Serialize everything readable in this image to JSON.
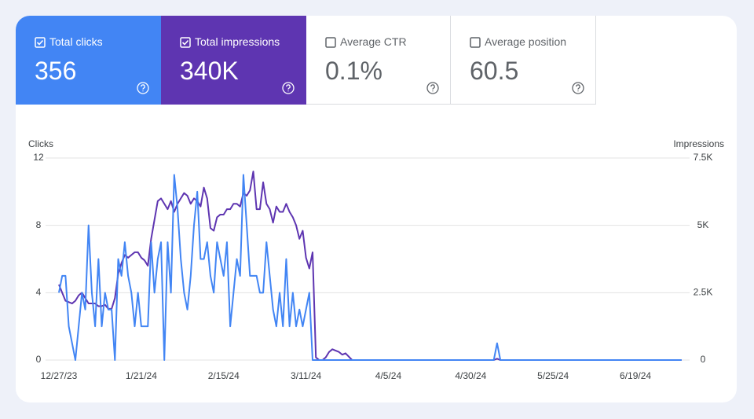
{
  "cards": [
    {
      "label": "Total clicks",
      "value": "356",
      "checked": true,
      "color": "#4285f4"
    },
    {
      "label": "Total impressions",
      "value": "340K",
      "checked": true,
      "color": "#5e35b1"
    },
    {
      "label": "Average CTR",
      "value": "0.1%",
      "checked": false,
      "color": "#ffffff"
    },
    {
      "label": "Average position",
      "value": "60.5",
      "checked": false,
      "color": "#ffffff"
    }
  ],
  "chart_data": {
    "type": "line",
    "ylabel": "Clicks",
    "y2label": "Impressions",
    "x": [
      "12/27/23",
      "12/28/23",
      "12/29/23",
      "12/30/23",
      "12/31/23",
      "1/1/24",
      "1/2/24",
      "1/3/24",
      "1/4/24",
      "1/5/24",
      "1/6/24",
      "1/7/24",
      "1/8/24",
      "1/9/24",
      "1/10/24",
      "1/11/24",
      "1/12/24",
      "1/13/24",
      "1/14/24",
      "1/15/24",
      "1/16/24",
      "1/17/24",
      "1/18/24",
      "1/19/24",
      "1/20/24",
      "1/21/24",
      "1/22/24",
      "1/23/24",
      "1/24/24",
      "1/25/24",
      "1/26/24",
      "1/27/24",
      "1/28/24",
      "1/29/24",
      "1/30/24",
      "1/31/24",
      "2/1/24",
      "2/2/24",
      "2/3/24",
      "2/4/24",
      "2/5/24",
      "2/6/24",
      "2/7/24",
      "2/8/24",
      "2/9/24",
      "2/10/24",
      "2/11/24",
      "2/12/24",
      "2/13/24",
      "2/14/24",
      "2/15/24",
      "2/16/24",
      "2/17/24",
      "2/18/24",
      "2/19/24",
      "2/20/24",
      "2/21/24",
      "2/22/24",
      "2/23/24",
      "2/24/24",
      "2/25/24",
      "2/26/24",
      "2/27/24",
      "2/28/24",
      "2/29/24",
      "3/1/24",
      "3/2/24",
      "3/3/24",
      "3/4/24",
      "3/5/24",
      "3/6/24",
      "3/7/24",
      "3/8/24",
      "3/9/24",
      "3/10/24",
      "3/11/24",
      "3/12/24",
      "3/13/24",
      "3/14/24",
      "3/15/24",
      "3/16/24",
      "3/17/24",
      "3/18/24",
      "3/19/24",
      "3/21/24",
      "3/22/24",
      "3/23/24",
      "3/25/24",
      "3/31/24",
      "4/15/24",
      "5/7/24",
      "5/8/24",
      "5/9/24",
      "6/1/24",
      "7/3/24"
    ],
    "series": [
      {
        "color": "#4285f4",
        "axis": "y",
        "values": [
          4,
          5,
          5,
          2,
          1,
          0,
          2,
          4,
          3,
          8,
          4,
          2,
          6,
          2,
          4,
          3,
          3,
          0,
          6,
          5,
          7,
          5,
          4,
          2,
          4,
          2,
          2,
          2,
          7,
          4,
          6,
          7,
          0,
          7,
          4,
          11,
          9,
          6,
          4,
          3,
          5,
          8,
          10,
          6,
          6,
          7,
          5,
          4,
          7,
          6,
          5,
          7,
          2,
          4,
          6,
          5,
          11,
          8,
          5,
          5,
          5,
          4,
          4,
          7,
          5,
          3,
          2,
          4,
          2,
          6,
          2,
          4,
          2,
          3,
          2,
          3,
          4,
          0,
          0,
          0,
          0,
          0,
          0,
          0,
          0,
          0,
          0,
          0,
          0,
          0,
          0,
          1,
          0,
          0,
          0
        ]
      },
      {
        "color": "#5e35b1",
        "axis": "y2",
        "values": [
          2800,
          2500,
          2200,
          2150,
          2100,
          2200,
          2400,
          2500,
          2300,
          2100,
          2100,
          2100,
          2000,
          2000,
          2050,
          1900,
          1900,
          2300,
          3200,
          3600,
          3900,
          3800,
          3900,
          4000,
          4000,
          3800,
          3700,
          3500,
          4500,
          5200,
          5900,
          6000,
          5800,
          5600,
          5900,
          5500,
          5800,
          6000,
          6200,
          6100,
          5800,
          6000,
          5900,
          5700,
          6400,
          6000,
          4900,
          4800,
          5300,
          5400,
          5400,
          5600,
          5600,
          5800,
          5800,
          5700,
          6200,
          6100,
          6300,
          7000,
          5600,
          5600,
          6600,
          5800,
          5600,
          5100,
          5700,
          5500,
          5500,
          5800,
          5500,
          5300,
          5000,
          4500,
          4800,
          3800,
          3400,
          4000,
          100,
          0,
          0,
          100,
          300,
          400,
          300,
          200,
          250,
          0,
          0,
          0,
          0,
          50,
          0,
          0,
          0
        ]
      }
    ],
    "xlim": [
      "12/27/23",
      "7/4/24"
    ],
    "xticks": [
      "12/27/23",
      "1/21/24",
      "2/15/24",
      "3/11/24",
      "4/5/24",
      "4/30/24",
      "5/25/24",
      "6/19/24"
    ],
    "ylim": [
      0,
      12
    ],
    "yticks": [
      0,
      4,
      8,
      12
    ],
    "y2lim": [
      0,
      7500
    ],
    "y2ticks": [
      0,
      {
        "value": 2500,
        "label": "2.5K"
      },
      {
        "value": 5000,
        "label": "5K"
      },
      {
        "value": 7500,
        "label": "7.5K"
      }
    ],
    "grid": true
  }
}
